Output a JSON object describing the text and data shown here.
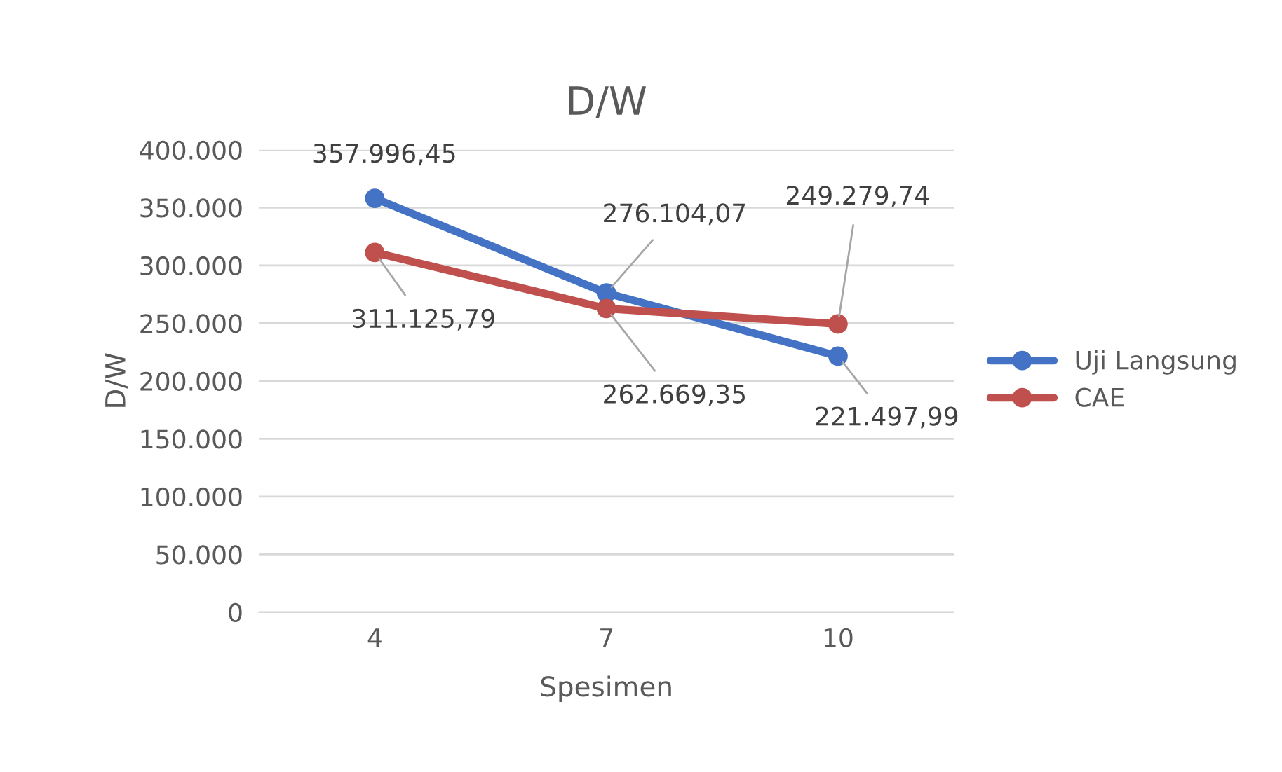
{
  "chart_data": {
    "type": "line",
    "title": "D/W",
    "xlabel": "Spesimen",
    "ylabel": "D/W",
    "categories": [
      "4",
      "7",
      "10"
    ],
    "series": [
      {
        "name": "Uji Langsung",
        "color": "#4472c4",
        "values": [
          357996.45,
          276104.07,
          221497.99
        ],
        "value_labels": [
          "357.996,45",
          "276.104,07",
          "221.497,99"
        ]
      },
      {
        "name": "CAE",
        "color": "#c0504d",
        "values": [
          311125.79,
          262669.35,
          249279.74
        ],
        "value_labels": [
          "311.125,79",
          "262.669,35",
          "249.279,74"
        ]
      }
    ],
    "ylim": [
      0,
      400000
    ],
    "yticks": [
      {
        "value": 0,
        "label": "0"
      },
      {
        "value": 50000,
        "label": "50.000"
      },
      {
        "value": 100000,
        "label": "100.000"
      },
      {
        "value": 150000,
        "label": "150.000"
      },
      {
        "value": 200000,
        "label": "200.000"
      },
      {
        "value": 250000,
        "label": "250.000"
      },
      {
        "value": 300000,
        "label": "300.000"
      },
      {
        "value": 350000,
        "label": "350.000"
      },
      {
        "value": 400000,
        "label": "400.000"
      }
    ],
    "grid": "y",
    "legend": "right",
    "marker": "circle",
    "line_style": "solid"
  }
}
